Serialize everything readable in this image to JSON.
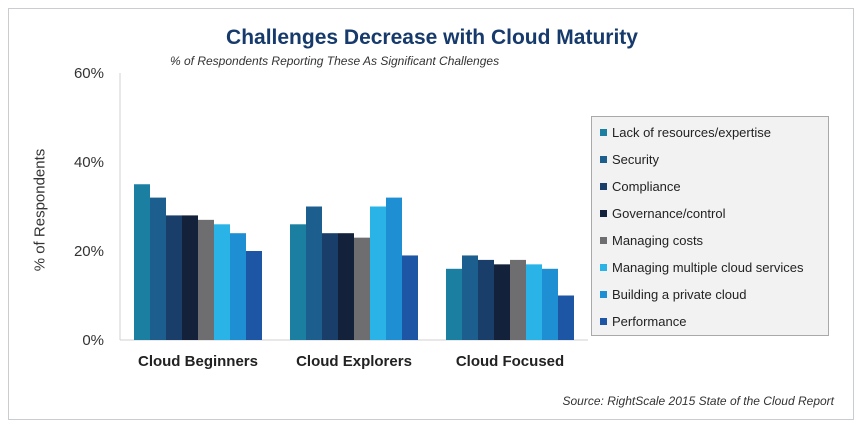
{
  "chart_data": {
    "type": "bar",
    "title": "Challenges Decrease with Cloud Maturity",
    "subtitle": "% of Respondents Reporting These As Significant Challenges",
    "ylabel": "% of Respondents",
    "xlabel": "",
    "ylim": [
      0,
      60
    ],
    "yticks": [
      {
        "value": 0,
        "label": "0%"
      },
      {
        "value": 20,
        "label": "20%"
      },
      {
        "value": 40,
        "label": "40%"
      },
      {
        "value": 60,
        "label": "60%"
      }
    ],
    "categories": [
      "Cloud Beginners",
      "Cloud Explorers",
      "Cloud Focused"
    ],
    "series": [
      {
        "name": "Lack of resources/expertise",
        "color": "#1a7fa0",
        "values": [
          35,
          26,
          16
        ]
      },
      {
        "name": "Security",
        "color": "#1c5f8f",
        "values": [
          32,
          30,
          19
        ]
      },
      {
        "name": "Compliance",
        "color": "#193e6a",
        "values": [
          28,
          24,
          18
        ]
      },
      {
        "name": "Governance/control",
        "color": "#14213a",
        "values": [
          28,
          24,
          17
        ]
      },
      {
        "name": "Managing costs",
        "color": "#6e6e70",
        "values": [
          27,
          23,
          18
        ]
      },
      {
        "name": "Managing multiple cloud services",
        "color": "#2ab3e6",
        "values": [
          26,
          30,
          17
        ]
      },
      {
        "name": "Building a private cloud",
        "color": "#1f8fd4",
        "values": [
          24,
          32,
          16
        ]
      },
      {
        "name": "Performance",
        "color": "#1d56a4",
        "values": [
          20,
          19,
          10
        ]
      }
    ],
    "legend_position": "right",
    "grid": false
  },
  "source": "Source: RightScale 2015 State of the Cloud Report"
}
